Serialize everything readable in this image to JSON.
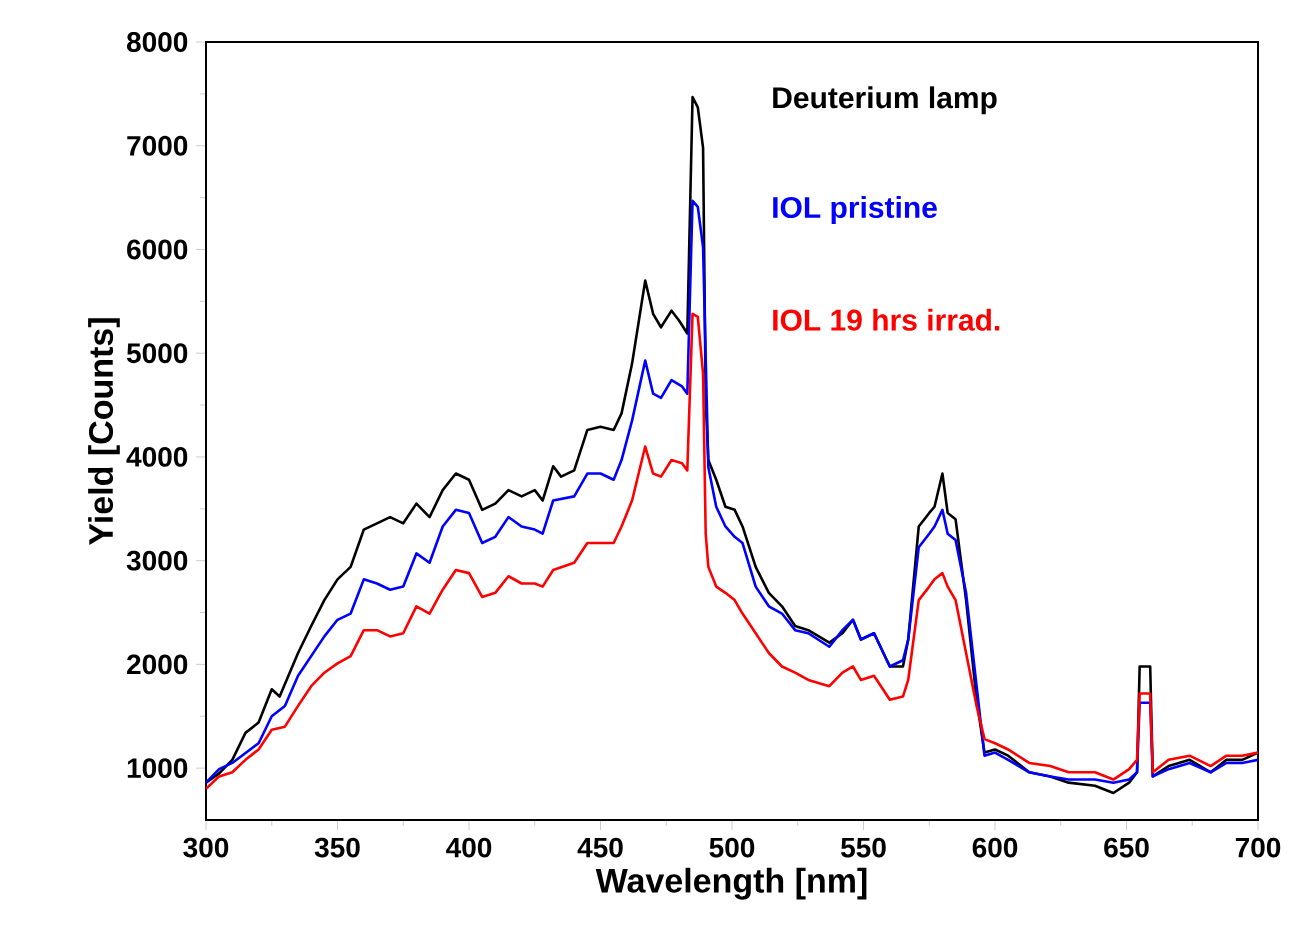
{
  "chart_data": {
    "type": "line",
    "xlabel": "Wavelength [nm]",
    "ylabel": "Yield [Counts]",
    "xlim": [
      300,
      700
    ],
    "ylim": [
      500,
      8000
    ],
    "xticks": [
      300,
      350,
      400,
      450,
      500,
      550,
      600,
      650,
      700
    ],
    "yticks": [
      1000,
      2000,
      3000,
      4000,
      5000,
      6000,
      7000,
      8000
    ],
    "grid": false,
    "legend": false,
    "series": [
      {
        "name": "Deuterium lamp",
        "color": "#000000",
        "x": [
          300,
          305,
          310,
          315,
          320,
          325,
          328,
          335,
          340,
          345,
          350,
          355,
          360,
          365,
          370,
          375,
          380,
          385,
          390,
          395,
          400,
          405,
          410,
          415,
          420,
          425,
          428,
          432,
          435,
          440,
          445,
          450,
          455,
          458,
          462,
          465,
          467,
          470,
          473,
          477,
          480,
          483,
          485,
          487,
          489,
          490,
          491,
          494,
          497.5,
          501,
          504,
          509,
          514,
          519,
          524,
          529,
          537,
          542,
          546,
          549,
          554,
          560,
          565,
          567,
          571,
          575,
          577,
          580,
          582,
          585,
          589,
          593,
          596,
          600,
          605,
          613,
          621,
          628,
          638,
          645,
          651,
          654,
          655,
          659,
          660,
          666,
          674,
          682,
          688,
          694,
          700
        ],
        "values": [
          860,
          950,
          1080,
          1340,
          1440,
          1760,
          1690,
          2110,
          2370,
          2620,
          2820,
          2940,
          3300,
          3360,
          3420,
          3360,
          3550,
          3420,
          3680,
          3840,
          3780,
          3490,
          3550,
          3680,
          3620,
          3680,
          3580,
          3910,
          3810,
          3870,
          4260,
          4290,
          4260,
          4420,
          4900,
          5380,
          5700,
          5380,
          5250,
          5410,
          5310,
          5190,
          7470,
          7370,
          6980,
          4550,
          3970,
          3780,
          3520,
          3490,
          3330,
          2940,
          2690,
          2560,
          2370,
          2330,
          2210,
          2300,
          2430,
          2240,
          2300,
          1980,
          1980,
          2240,
          3330,
          3460,
          3520,
          3840,
          3460,
          3400,
          2620,
          1660,
          1150,
          1180,
          1120,
          960,
          920,
          860,
          830,
          760,
          860,
          960,
          1980,
          1980,
          920,
          1020,
          1080,
          960,
          1080,
          1080,
          1150
        ]
      },
      {
        "name": "IOL pristine",
        "color": "#0000ff",
        "x": [
          300,
          305,
          310,
          320,
          325,
          330,
          335,
          340,
          345,
          350,
          355,
          360,
          365,
          370,
          375,
          380,
          385,
          390,
          395,
          400,
          405,
          410,
          415,
          420,
          425,
          428,
          432,
          440,
          445,
          450,
          455,
          458,
          462,
          467,
          470,
          473,
          477,
          481,
          483,
          485,
          487,
          489,
          491,
          494,
          497.5,
          501,
          504,
          509,
          514,
          519,
          524,
          529,
          537,
          542,
          546,
          549,
          554,
          560,
          565,
          567,
          571,
          575,
          577,
          580,
          582,
          585,
          589,
          593,
          596,
          600,
          605,
          613,
          621,
          628,
          638,
          645,
          651,
          654,
          655,
          659,
          660,
          666,
          674,
          682,
          688,
          694,
          700
        ],
        "values": [
          860,
          990,
          1050,
          1240,
          1500,
          1600,
          1890,
          2080,
          2270,
          2430,
          2490,
          2820,
          2780,
          2720,
          2750,
          3070,
          2980,
          3330,
          3490,
          3460,
          3170,
          3230,
          3420,
          3330,
          3300,
          3260,
          3580,
          3620,
          3840,
          3840,
          3780,
          3970,
          4350,
          4930,
          4610,
          4570,
          4740,
          4680,
          4610,
          6470,
          6410,
          6020,
          3900,
          3520,
          3330,
          3230,
          3170,
          2750,
          2560,
          2490,
          2330,
          2300,
          2170,
          2330,
          2430,
          2240,
          2300,
          1980,
          2040,
          2240,
          3130,
          3260,
          3330,
          3490,
          3260,
          3200,
          2690,
          1790,
          1120,
          1150,
          1080,
          960,
          920,
          890,
          890,
          860,
          890,
          960,
          1630,
          1630,
          920,
          990,
          1050,
          960,
          1050,
          1050,
          1080
        ]
      },
      {
        "name": "IOL 19 hrs irrad.",
        "color": "#ff0000",
        "x": [
          300,
          305,
          310,
          315,
          320,
          325,
          330,
          335,
          340,
          345,
          350,
          355,
          360,
          365,
          370,
          375,
          380,
          385,
          390,
          395,
          400,
          405,
          410,
          415,
          420,
          425,
          428,
          432,
          440,
          445,
          450,
          455,
          458,
          462,
          467,
          470,
          473,
          477,
          481,
          483,
          485,
          487,
          489,
          490,
          491,
          494,
          497.5,
          501,
          504,
          509,
          514,
          519,
          524,
          529,
          537,
          542,
          546,
          549,
          554,
          560,
          565,
          567,
          571,
          575,
          577,
          580,
          582,
          585,
          589,
          593,
          596,
          600,
          605,
          613,
          621,
          628,
          638,
          645,
          651,
          654,
          655,
          659,
          660,
          666,
          674,
          682,
          688,
          694,
          700
        ],
        "values": [
          800,
          920,
          960,
          1080,
          1180,
          1370,
          1400,
          1600,
          1790,
          1920,
          2010,
          2080,
          2330,
          2330,
          2270,
          2300,
          2560,
          2490,
          2720,
          2910,
          2880,
          2650,
          2690,
          2850,
          2780,
          2780,
          2750,
          2910,
          2980,
          3170,
          3170,
          3170,
          3330,
          3580,
          4100,
          3840,
          3810,
          3970,
          3940,
          3870,
          5380,
          5350,
          4800,
          3260,
          2940,
          2750,
          2690,
          2620,
          2490,
          2300,
          2110,
          1980,
          1920,
          1850,
          1790,
          1920,
          1980,
          1850,
          1890,
          1660,
          1690,
          1850,
          2620,
          2750,
          2820,
          2880,
          2750,
          2620,
          2110,
          1600,
          1280,
          1240,
          1180,
          1050,
          1020,
          960,
          960,
          890,
          990,
          1080,
          1720,
          1720,
          960,
          1080,
          1120,
          1020,
          1120,
          1120,
          1150
        ]
      }
    ]
  }
}
